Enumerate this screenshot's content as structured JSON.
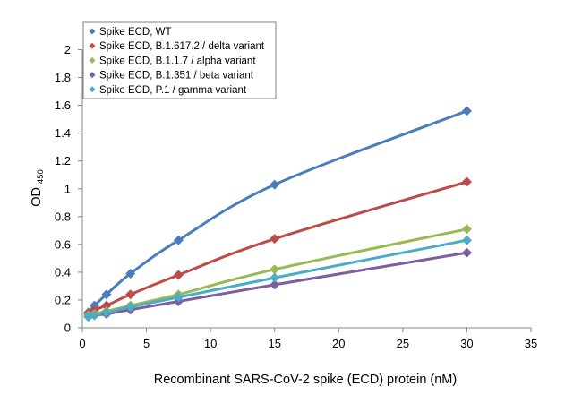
{
  "chart_data": {
    "type": "scatter",
    "xlabel": "Recombinant SARS-CoV-2 spike (ECD) protein (nM)",
    "ylabel": "OD",
    "ylabel_subscript": "450",
    "xlim": [
      0,
      35
    ],
    "ylim": [
      0,
      2.1
    ],
    "xticks": [
      0,
      5,
      10,
      15,
      20,
      25,
      30,
      35
    ],
    "xtick_labels": [
      "0",
      "5",
      "10",
      "15",
      "20",
      "25",
      "30",
      "35"
    ],
    "yticks": [
      0,
      0.2,
      0.4,
      0.6,
      0.8,
      1,
      1.2,
      1.4,
      1.6,
      1.8,
      2
    ],
    "ytick_labels": [
      "0",
      "0.2",
      "0.4",
      "0.6",
      "0.8",
      "1",
      "1.2",
      "1.4",
      "1.6",
      "1.8",
      "2"
    ],
    "grid": false,
    "legend_position": "top-left",
    "x": [
      0.47,
      0.94,
      1.88,
      3.75,
      7.5,
      15,
      30
    ],
    "series": [
      {
        "name": "Spike ECD, WT",
        "color": "#4A7EBB",
        "marker": "diamond",
        "values": [
          0.11,
          0.16,
          0.24,
          0.39,
          0.63,
          1.03,
          1.56
        ]
      },
      {
        "name": "Spike ECD, B.1.617.2 / delta variant",
        "color": "#BE4B48",
        "marker": "diamond",
        "values": [
          0.1,
          0.13,
          0.16,
          0.24,
          0.38,
          0.64,
          1.05
        ]
      },
      {
        "name": "Spike ECD, B.1.1.7 / alpha variant",
        "color": "#98B954",
        "marker": "diamond",
        "values": [
          0.09,
          0.1,
          0.12,
          0.16,
          0.24,
          0.42,
          0.71
        ]
      },
      {
        "name": "Spike ECD, B.1.351 / beta variant",
        "color": "#7D5FA0",
        "marker": "diamond",
        "values": [
          0.08,
          0.09,
          0.1,
          0.13,
          0.19,
          0.31,
          0.54
        ]
      },
      {
        "name": "Spike ECD, P.1 / gamma variant",
        "color": "#4BACC6",
        "marker": "diamond",
        "values": [
          0.08,
          0.09,
          0.11,
          0.15,
          0.22,
          0.36,
          0.63
        ]
      }
    ]
  }
}
